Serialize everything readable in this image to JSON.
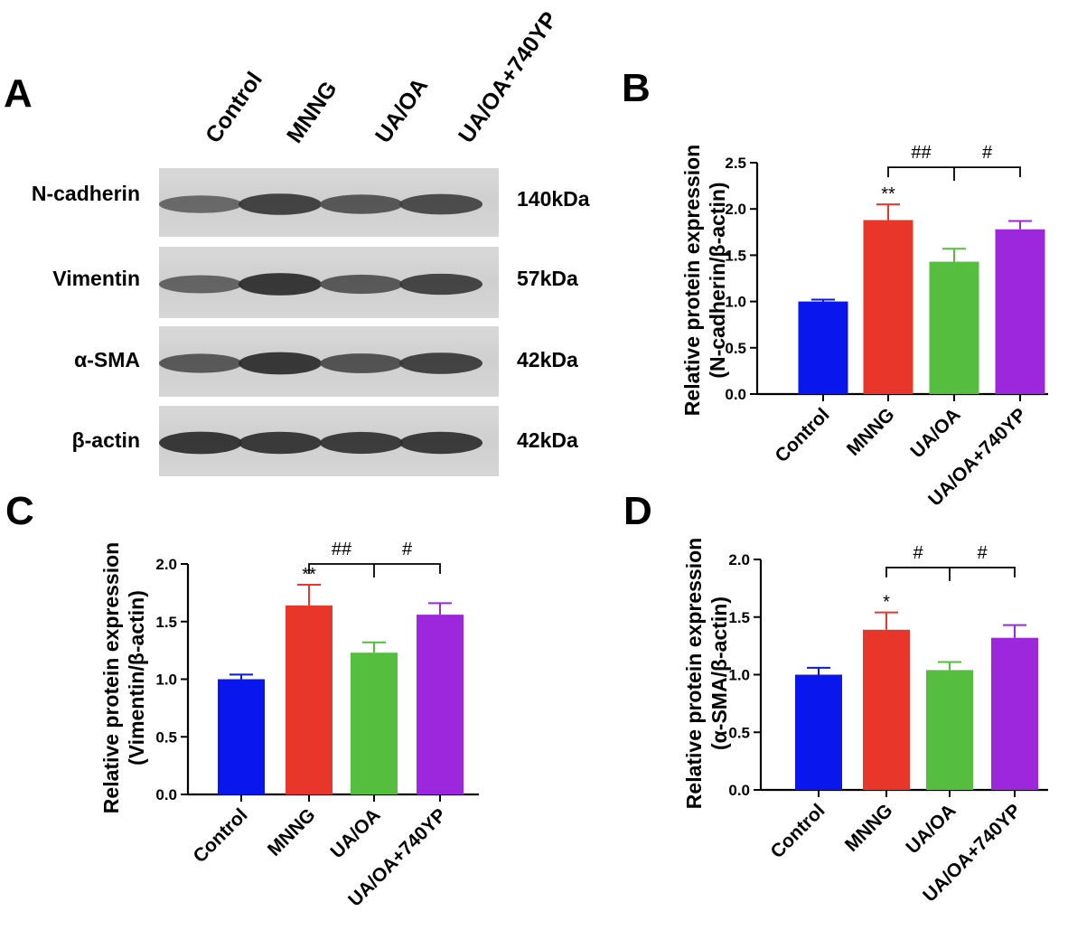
{
  "panel_a": {
    "letter": "A",
    "lanes": [
      "Control",
      "MNNG",
      "UA/OA",
      "UA/OA+740YP"
    ],
    "blots": [
      {
        "protein": "N-cadherin",
        "size": "140kDa",
        "intensities": [
          0.45,
          0.8,
          0.62,
          0.72
        ]
      },
      {
        "protein": "Vimentin",
        "size": "57kDa",
        "intensities": [
          0.5,
          0.9,
          0.6,
          0.78
        ]
      },
      {
        "protein": "α-SMA",
        "size": "42kDa",
        "intensities": [
          0.6,
          0.9,
          0.65,
          0.8
        ]
      },
      {
        "protein": "β-actin",
        "size": "42kDa",
        "intensities": [
          0.9,
          0.88,
          0.85,
          0.87
        ]
      }
    ]
  },
  "chart_data": [
    {
      "panel": "B",
      "type": "bar",
      "categories": [
        "Control",
        "MNNG",
        "UA/OA",
        "UA/OA+740YP"
      ],
      "values": [
        1.0,
        1.88,
        1.43,
        1.78
      ],
      "errors": [
        0.02,
        0.17,
        0.14,
        0.09
      ],
      "colors": [
        "#0a16ee",
        "#e8372a",
        "#55be3f",
        "#9c27dd"
      ],
      "ylabel_line1": "Relative protein expression",
      "ylabel_line2": "(N-cadherin/β-actin)",
      "ylim": [
        0,
        2.5
      ],
      "yticks": [
        0.0,
        0.5,
        1.0,
        1.5,
        2.0,
        2.5
      ],
      "ytick_labels": [
        "0.0",
        "0.5",
        "1.0",
        "1.5",
        "2.0",
        "2.5"
      ],
      "star_labels": [
        "",
        "**",
        "",
        ""
      ],
      "bracket_level": 2.45,
      "bracket_labels": [
        "##",
        "#"
      ]
    },
    {
      "panel": "C",
      "type": "bar",
      "categories": [
        "Control",
        "MNNG",
        "UA/OA",
        "UA/OA+740YP"
      ],
      "values": [
        1.0,
        1.64,
        1.23,
        1.56
      ],
      "errors": [
        0.04,
        0.18,
        0.09,
        0.1
      ],
      "colors": [
        "#0a16ee",
        "#e8372a",
        "#55be3f",
        "#9c27dd"
      ],
      "ylabel_line1": "Relative protein expression",
      "ylabel_line2": "(Vimentin/β-actin)",
      "ylim": [
        0,
        2.0
      ],
      "yticks": [
        0.0,
        0.5,
        1.0,
        1.5,
        2.0
      ],
      "ytick_labels": [
        "0.0",
        "0.5",
        "1.0",
        "1.5",
        "2.0"
      ],
      "star_labels": [
        "",
        "**",
        "",
        ""
      ],
      "bracket_level": 2.0,
      "bracket_labels": [
        "##",
        "#"
      ]
    },
    {
      "panel": "D",
      "type": "bar",
      "categories": [
        "Control",
        "MNNG",
        "UA/OA",
        "UA/OA+740YP"
      ],
      "values": [
        1.0,
        1.39,
        1.04,
        1.32
      ],
      "errors": [
        0.06,
        0.15,
        0.07,
        0.11
      ],
      "colors": [
        "#0a16ee",
        "#e8372a",
        "#55be3f",
        "#9c27dd"
      ],
      "ylabel_line1": "Relative protein expression",
      "ylabel_line2": "(α-SMA/β-actin)",
      "ylim": [
        0,
        2.0
      ],
      "yticks": [
        0.0,
        0.5,
        1.0,
        1.5,
        2.0
      ],
      "ytick_labels": [
        "0.0",
        "0.5",
        "1.0",
        "1.5",
        "2.0"
      ],
      "star_labels": [
        "",
        "*",
        "",
        ""
      ],
      "bracket_level": 1.93,
      "bracket_labels": [
        "#",
        "#"
      ]
    }
  ]
}
